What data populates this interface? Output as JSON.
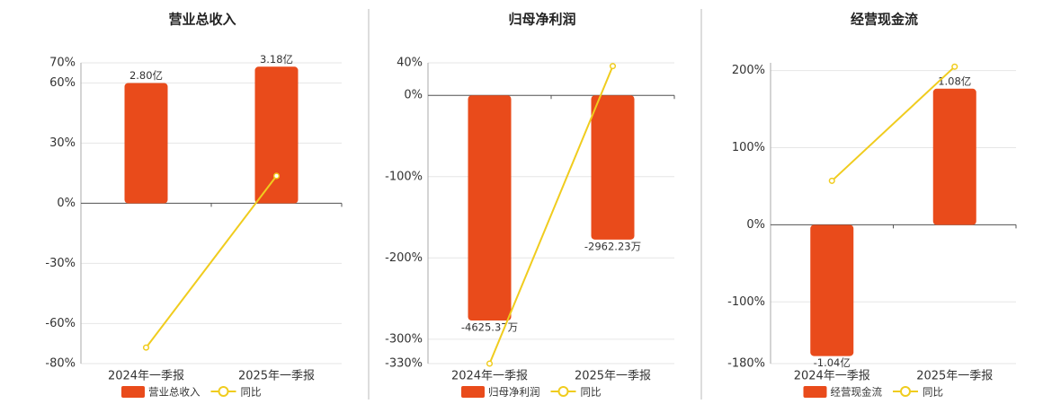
{
  "chart_data": [
    {
      "type": "bar",
      "title": "营业总收入",
      "categories": [
        "2024年一季报",
        "2025年一季报"
      ],
      "series": [
        {
          "name": "营业总收入",
          "color": "#e94b1b",
          "axis": "y2",
          "values": [
            2.8,
            3.18
          ],
          "value_labels": [
            "2.80亿",
            "3.18亿"
          ]
        },
        {
          "name": "同比",
          "type": "line",
          "color": "#f0cc1e",
          "values": [
            -72,
            13.6
          ]
        }
      ],
      "ylim": [
        -80,
        70
      ],
      "yticks": [
        {
          "value": -80,
          "label": "-80%"
        },
        {
          "value": -60,
          "label": "-60%"
        },
        {
          "value": -30,
          "label": "-30%"
        },
        {
          "value": 0,
          "label": "0%"
        },
        {
          "value": 30,
          "label": "30%"
        },
        {
          "value": 60,
          "label": "60%"
        },
        {
          "value": 70,
          "label": "70%"
        }
      ],
      "y2lim": [
        -3.73,
        3.27
      ],
      "grid": true
    },
    {
      "type": "bar",
      "title": "归母净利润",
      "categories": [
        "2024年一季报",
        "2025年一季报"
      ],
      "series": [
        {
          "name": "归母净利润",
          "color": "#e94b1b",
          "axis": "y2",
          "values": [
            -4625.37,
            -2962.23
          ],
          "value_labels": [
            "-4625.37万",
            "-2962.23万"
          ]
        },
        {
          "name": "同比",
          "type": "line",
          "color": "#f0cc1e",
          "values": [
            -330,
            36
          ]
        }
      ],
      "ylim": [
        -330,
        40
      ],
      "yticks": [
        {
          "value": -330,
          "label": "-330%"
        },
        {
          "value": -300,
          "label": "-300%"
        },
        {
          "value": -200,
          "label": "-200%"
        },
        {
          "value": -100,
          "label": "-100%"
        },
        {
          "value": 0,
          "label": "0%"
        },
        {
          "value": 40,
          "label": "40%"
        }
      ],
      "y2lim": [
        -5510,
        668
      ],
      "grid": true
    },
    {
      "type": "bar",
      "title": "经营现金流",
      "categories": [
        "2024年一季报",
        "2025年一季报"
      ],
      "series": [
        {
          "name": "经营现金流",
          "color": "#e94b1b",
          "axis": "y2",
          "values": [
            -1.04,
            1.08
          ],
          "value_labels": [
            "-1.04亿",
            "1.08亿"
          ]
        },
        {
          "name": "同比",
          "type": "line",
          "color": "#f0cc1e",
          "values": [
            57,
            205
          ]
        }
      ],
      "ylim": [
        -180,
        210
      ],
      "yticks": [
        {
          "value": -180,
          "label": "-180%"
        },
        {
          "value": -100,
          "label": "-100%"
        },
        {
          "value": 0,
          "label": "0%"
        },
        {
          "value": 100,
          "label": "100%"
        },
        {
          "value": 200,
          "label": "200%"
        }
      ],
      "y2lim": [
        -1.1,
        1.285
      ],
      "grid": true
    }
  ]
}
